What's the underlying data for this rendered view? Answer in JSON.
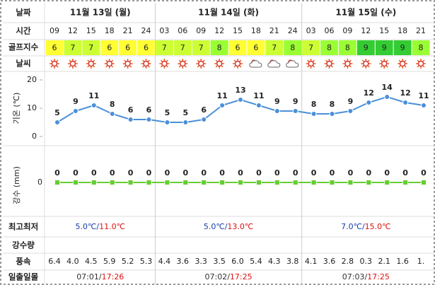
{
  "labels": {
    "date": "날짜",
    "time": "시간",
    "golf": "골프지수",
    "weather": "날씨",
    "temp_axis": "기온 (℃)",
    "rain_axis": "강수 (mm)",
    "minmax": "최고최저",
    "rain": "강수량",
    "wind": "풍속",
    "sun": "일출일몰"
  },
  "separator": "/",
  "days": [
    {
      "date": "11월 13일 (월)",
      "min": "5.0℃",
      "max": "11.0℃",
      "sunrise": "07:01",
      "sunset": "17:26"
    },
    {
      "date": "11월 14일 (화)",
      "min": "5.0℃",
      "max": "13.0℃",
      "sunrise": "07:02",
      "sunset": "17:25"
    },
    {
      "date": "11월 15일 (수)",
      "min": "7.0℃",
      "max": "15.0℃",
      "sunrise": "07:03",
      "sunset": "17:25"
    }
  ],
  "times": [
    "09",
    "12",
    "15",
    "18",
    "21",
    "24",
    "03",
    "06",
    "09",
    "12",
    "15",
    "18",
    "21",
    "24",
    "03",
    "06",
    "09",
    "12",
    "15",
    "18",
    "21"
  ],
  "golf_index": [
    6,
    7,
    7,
    6,
    6,
    6,
    7,
    7,
    7,
    8,
    6,
    6,
    7,
    8,
    7,
    8,
    8,
    9,
    9,
    9,
    8
  ],
  "golf_colors": {
    "6": "#ffff33",
    "7": "#ccff33",
    "8": "#99ff33",
    "9": "#33cc33"
  },
  "temperature": {
    "type": "line",
    "color": "#4a90d9",
    "values": [
      5,
      9,
      11,
      8,
      6,
      6,
      5,
      5,
      6,
      11,
      13,
      11,
      9,
      9,
      8,
      8,
      9,
      12,
      14,
      12,
      11
    ],
    "ylim": [
      0,
      20
    ],
    "yticks": [
      0,
      10,
      20
    ]
  },
  "rain": {
    "type": "line",
    "color": "#66cc33",
    "values": [
      0,
      0,
      0,
      0,
      0,
      0,
      0,
      0,
      0,
      0,
      0,
      0,
      0,
      0,
      0,
      0,
      0,
      0,
      0,
      0,
      0
    ],
    "yticks": [
      0
    ]
  },
  "wind": [
    "6.4",
    "4.0",
    "4.5",
    "5.9",
    "5.2",
    "5.3",
    "4.4",
    "3.6",
    "3.3",
    "3.5",
    "6.0",
    "5.4",
    "4.3",
    "3.8",
    "4.1",
    "3.6",
    "2.8",
    "0.3",
    "2.1",
    "1.6",
    "1."
  ]
}
